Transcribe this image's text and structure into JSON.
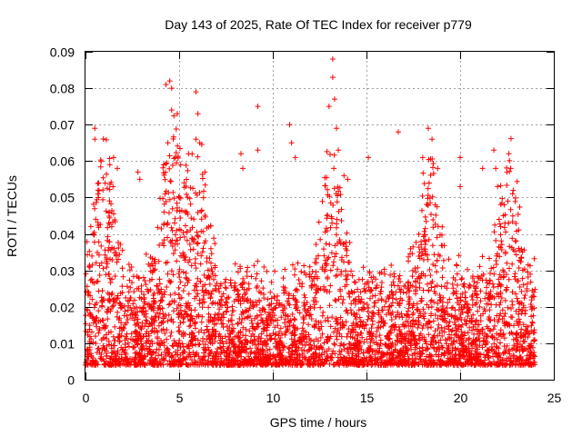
{
  "chart_data": {
    "type": "scatter",
    "title": "Day 143 of 2025, Rate Of TEC Index for receiver p779",
    "xlabel": "GPS time / hours",
    "ylabel": "ROTI / TECUs",
    "xlim": [
      0,
      25
    ],
    "ylim": [
      0,
      0.09
    ],
    "x_ticks": [
      "0",
      "5",
      "10",
      "15",
      "20",
      "25"
    ],
    "y_ticks": [
      "0",
      "0.01",
      "0.02",
      "0.03",
      "0.04",
      "0.05",
      "0.06",
      "0.07",
      "0.08",
      "0.09"
    ],
    "grid": true,
    "marker": "plus",
    "color": "#ff0000",
    "series": [
      {
        "name": "ROTI",
        "note": "dense cloud of ~thousands of points from 0 to 24 h; representative outliers listed",
        "points": [
          [
            0.5,
            0.069
          ],
          [
            0.5,
            0.066
          ],
          [
            0.7,
            0.05
          ],
          [
            1.3,
            0.059
          ],
          [
            1.5,
            0.061
          ],
          [
            1.7,
            0.058
          ],
          [
            2.8,
            0.057
          ],
          [
            2.9,
            0.055
          ],
          [
            4.3,
            0.081
          ],
          [
            4.5,
            0.082
          ],
          [
            4.6,
            0.08
          ],
          [
            4.6,
            0.074
          ],
          [
            4.4,
            0.065
          ],
          [
            4.8,
            0.061
          ],
          [
            4.9,
            0.073
          ],
          [
            5.5,
            0.062
          ],
          [
            5.9,
            0.079
          ],
          [
            6.0,
            0.073
          ],
          [
            5.9,
            0.066
          ],
          [
            6.1,
            0.065
          ],
          [
            8.3,
            0.062
          ],
          [
            8.4,
            0.058
          ],
          [
            9.2,
            0.075
          ],
          [
            9.2,
            0.063
          ],
          [
            10.9,
            0.07
          ],
          [
            11.0,
            0.065
          ],
          [
            11.2,
            0.061
          ],
          [
            13.0,
            0.075
          ],
          [
            13.2,
            0.088
          ],
          [
            13.2,
            0.083
          ],
          [
            13.3,
            0.077
          ],
          [
            13.4,
            0.069
          ],
          [
            13.5,
            0.063
          ],
          [
            13.8,
            0.056
          ],
          [
            14.0,
            0.055
          ],
          [
            15.1,
            0.061
          ],
          [
            16.7,
            0.068
          ],
          [
            18.0,
            0.061
          ],
          [
            18.3,
            0.069
          ],
          [
            18.5,
            0.066
          ],
          [
            18.8,
            0.058
          ],
          [
            20.0,
            0.061
          ],
          [
            20.0,
            0.053
          ],
          [
            21.2,
            0.058
          ],
          [
            21.8,
            0.063
          ],
          [
            21.9,
            0.058
          ],
          [
            22.0,
            0.053
          ],
          [
            22.5,
            0.057
          ],
          [
            22.6,
            0.062
          ],
          [
            22.7,
            0.058
          ],
          [
            22.8,
            0.051
          ]
        ]
      }
    ]
  }
}
